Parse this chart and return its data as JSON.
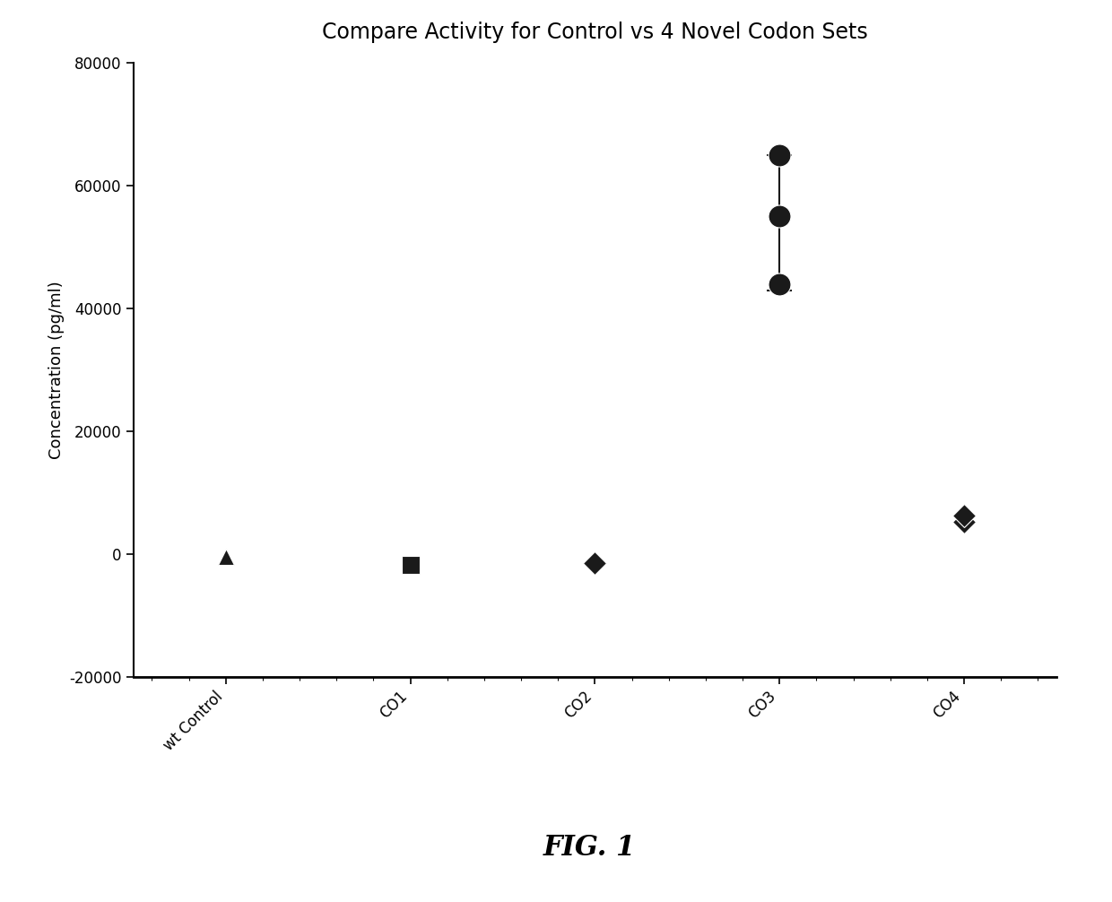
{
  "title": "Compare Activity for Control vs 4 Novel Codon Sets",
  "ylabel": "Concentration (pg/ml)",
  "xlabel": "",
  "fig_label": "FIG. 1",
  "categories": [
    "wt Control",
    "CO1",
    "CO2",
    "CO3",
    "CO4"
  ],
  "x_positions": [
    1,
    2,
    3,
    4,
    5
  ],
  "ylim": [
    -20000,
    80000
  ],
  "yticks": [
    -20000,
    0,
    20000,
    40000,
    60000,
    80000
  ],
  "data_points": {
    "wt Control": {
      "values": [
        -500
      ],
      "marker": "^",
      "color": "#1a1a1a"
    },
    "CO1": {
      "values": [
        -1800
      ],
      "marker": "s",
      "color": "#1a1a1a"
    },
    "CO2": {
      "values": [
        -1500
      ],
      "marker": "D",
      "color": "#1a1a1a"
    },
    "CO3": {
      "values": [
        44000,
        55000,
        65000
      ],
      "marker": "o",
      "color": "#1a1a1a",
      "error_mean": 54000,
      "error_low": 11000,
      "error_high": 11000
    },
    "CO4": {
      "values": [
        5200,
        6200
      ],
      "marker": "D",
      "color": "#1a1a1a"
    }
  },
  "background_color": "#ffffff",
  "title_fontsize": 17,
  "axis_fontsize": 13,
  "tick_fontsize": 12,
  "marker_size": 13
}
